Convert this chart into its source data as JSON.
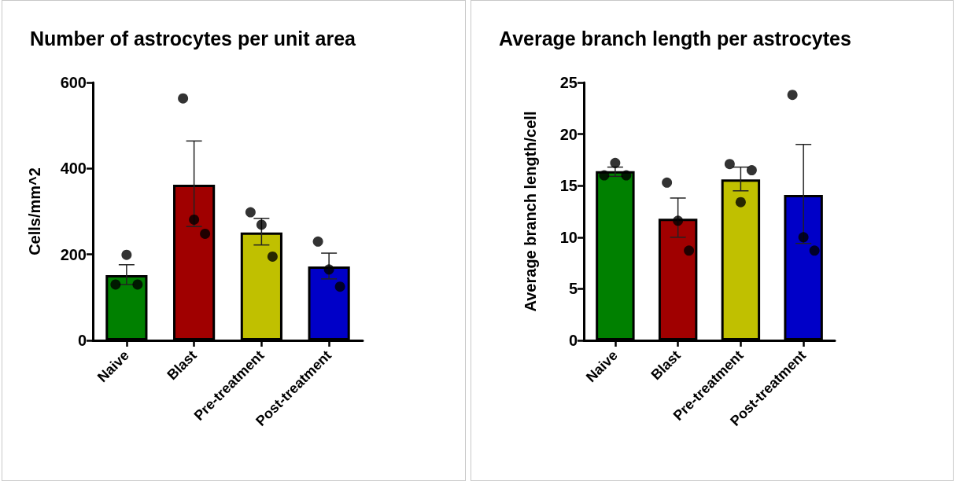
{
  "chart_data": [
    {
      "type": "bar",
      "title": "Number of astrocytes per unit area",
      "ylabel": "Cells/mm^2",
      "categories": [
        "Naive",
        "Blast",
        "Pre-treatment",
        "Post-treatment"
      ],
      "ylim": [
        0,
        600
      ],
      "yticks": [
        0,
        200,
        400,
        600
      ],
      "grid": false,
      "series": [
        {
          "values": [
            152,
            362,
            251,
            172
          ],
          "colors": [
            "#008000",
            "#a00000",
            "#c0c000",
            "#0000c8"
          ],
          "errors": [
            [
              130,
              176
            ],
            [
              265,
              464
            ],
            [
              222,
              284
            ],
            [
              143,
              203
            ]
          ]
        },
        {
          "type": "scatter",
          "color": "#000000",
          "marker": "circle",
          "x": [
            "Naive",
            "Naive",
            "Naive",
            "Blast",
            "Blast",
            "Blast",
            "Pre-treatment",
            "Pre-treatment",
            "Pre-treatment",
            "Post-treatment",
            "Post-treatment",
            "Post-treatment"
          ],
          "values": [
            130,
            199,
            130,
            563,
            281,
            248,
            298,
            269,
            195,
            230,
            165,
            125
          ]
        }
      ]
    },
    {
      "type": "bar",
      "title": "Average branch length per astrocytes",
      "ylabel": "Average branch length/cell",
      "categories": [
        "Naive",
        "Blast",
        "Pre-treatment",
        "Post-treatment"
      ],
      "ylim": [
        0,
        25
      ],
      "yticks": [
        0,
        5,
        10,
        15,
        20,
        25
      ],
      "grid": false,
      "series": [
        {
          "values": [
            16.4,
            11.8,
            15.6,
            14.1
          ],
          "colors": [
            "#008000",
            "#a00000",
            "#c0c000",
            "#0000c8"
          ],
          "errors": [
            [
              15.9,
              16.8
            ],
            [
              10.0,
              13.8
            ],
            [
              14.5,
              16.8
            ],
            [
              9.4,
              19.0
            ]
          ]
        },
        {
          "type": "scatter",
          "color": "#000000",
          "marker": "circle",
          "x": [
            "Naive",
            "Naive",
            "Naive",
            "Blast",
            "Blast",
            "Blast",
            "Pre-treatment",
            "Pre-treatment",
            "Pre-treatment",
            "Post-treatment",
            "Post-treatment",
            "Post-treatment"
          ],
          "values": [
            16.0,
            17.2,
            16.0,
            15.3,
            11.6,
            8.7,
            17.1,
            13.4,
            16.5,
            23.8,
            10.0,
            8.7
          ]
        }
      ]
    }
  ]
}
